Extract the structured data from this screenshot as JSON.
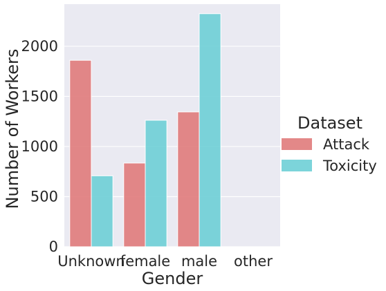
{
  "chart_data": {
    "type": "bar",
    "title": "",
    "xlabel": "Gender",
    "ylabel": "Number of Workers",
    "categories": [
      "Unknown",
      "female",
      "male",
      "other"
    ],
    "series": [
      {
        "name": "Attack",
        "color": "#e07b7b",
        "values": [
          1860,
          835,
          1345,
          0
        ]
      },
      {
        "name": "Toxicity",
        "color": "#6ecfd6",
        "values": [
          708,
          1262,
          2325,
          0
        ]
      }
    ],
    "ylim": [
      0,
      2420
    ],
    "yticks": [
      0,
      500,
      1000,
      1500,
      2000
    ],
    "grid": true,
    "legend": {
      "title": "Dataset",
      "placement": "right"
    }
  }
}
